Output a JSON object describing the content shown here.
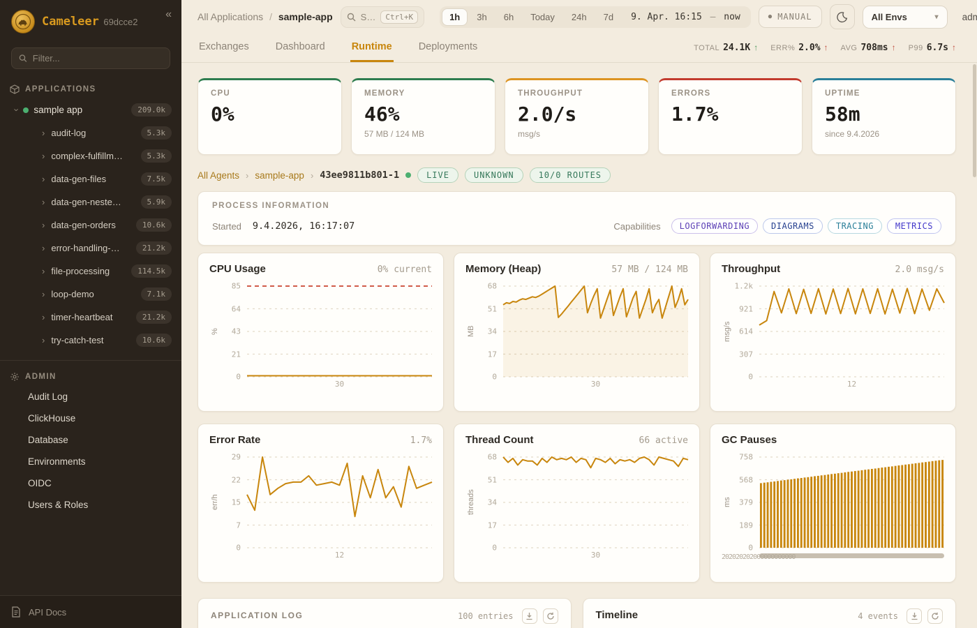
{
  "brand": {
    "name": "Cameleer",
    "build": "69dcce2",
    "collapse_icon": "«",
    "gold": "#d99a1f"
  },
  "sidebar": {
    "filter_placeholder": "Filter...",
    "applications_header": "APPLICATIONS",
    "app": {
      "name": "sample app",
      "count": "209.0k"
    },
    "routes": [
      {
        "label": "audit-log",
        "count": "5.3k"
      },
      {
        "label": "complex-fulfillm…",
        "count": "5.3k"
      },
      {
        "label": "data-gen-files",
        "count": "7.5k"
      },
      {
        "label": "data-gen-neste…",
        "count": "5.9k"
      },
      {
        "label": "data-gen-orders",
        "count": "10.6k"
      },
      {
        "label": "error-handling-…",
        "count": "21.2k"
      },
      {
        "label": "file-processing",
        "count": "114.5k"
      },
      {
        "label": "loop-demo",
        "count": "7.1k"
      },
      {
        "label": "timer-heartbeat",
        "count": "21.2k"
      },
      {
        "label": "try-catch-test",
        "count": "10.6k"
      }
    ],
    "admin_header": "ADMIN",
    "admin_items": [
      "Audit Log",
      "ClickHouse",
      "Database",
      "Environments",
      "OIDC",
      "Users & Roles"
    ],
    "api_docs": "API Docs"
  },
  "topbar": {
    "breadcrumb": {
      "root": "All Applications",
      "separator": "/",
      "current": "sample-app"
    },
    "search": {
      "placeholder": "S…",
      "shortcut": "Ctrl+K"
    },
    "time_ranges": [
      "1h",
      "3h",
      "6h",
      "Today",
      "24h",
      "7d"
    ],
    "active_range": "1h",
    "date_range": {
      "start": "9. Apr. 16:15",
      "separator": "—",
      "end": "now"
    },
    "manual_button": "MANUAL",
    "env_select": "All Envs",
    "user": "admin"
  },
  "tabs": {
    "items": [
      "Exchanges",
      "Dashboard",
      "Runtime",
      "Deployments"
    ],
    "active": "Runtime"
  },
  "stats": [
    {
      "label": "TOTAL",
      "value": "24.1K",
      "arrow": "↑",
      "trend": "up-good"
    },
    {
      "label": "ERR%",
      "value": "2.0%",
      "arrow": "↑",
      "trend": "up-bad"
    },
    {
      "label": "AVG",
      "value": "708ms",
      "arrow": "↑",
      "trend": "up-bad"
    },
    {
      "label": "P99",
      "value": "6.7s",
      "arrow": "↑",
      "trend": "up-bad"
    }
  ],
  "metric_cards": [
    {
      "label": "CPU",
      "value": "0%",
      "sub": "",
      "accent": "#2e7d4f"
    },
    {
      "label": "MEMORY",
      "value": "46%",
      "sub": "57 MB / 124 MB",
      "accent": "#2e7d4f"
    },
    {
      "label": "THROUGHPUT",
      "value": "2.0/s",
      "sub": "msg/s",
      "accent": "#dd9422"
    },
    {
      "label": "ERRORS",
      "value": "1.7%",
      "sub": "",
      "accent": "#c23b2e"
    },
    {
      "label": "UPTIME",
      "value": "58m",
      "sub": "since 9.4.2026",
      "accent": "#2a7f99"
    }
  ],
  "agent_bar": {
    "links": [
      "All Agents",
      "sample-app"
    ],
    "separator": "›",
    "agent_id": "43ee9811b801-1",
    "status_dot_color": "#4caf70",
    "pills": [
      "LIVE",
      "UNKNOWN",
      "10/0 ROUTES"
    ]
  },
  "process_info": {
    "title": "PROCESS INFORMATION",
    "started_label": "Started",
    "started_value": "9.4.2026, 16:17:07",
    "capabilities_label": "Capabilities",
    "capabilities": [
      {
        "label": "LOGFORWARDING",
        "color": "#5b3fb5",
        "border": "#cbc0ea"
      },
      {
        "label": "DIAGRAMS",
        "color": "#27418f",
        "border": "#bcc8ea"
      },
      {
        "label": "TRACING",
        "color": "#2a7f99",
        "border": "#b7d8e0"
      },
      {
        "label": "METRICS",
        "color": "#4338ca",
        "border": "#c0c4ef"
      }
    ]
  },
  "chart_data": [
    {
      "type": "line",
      "title": "CPU Usage",
      "value_label": "0% current",
      "ylabel": "%",
      "yticks": [
        "85",
        "64",
        "43",
        "21",
        "0"
      ],
      "ymax": 85,
      "threshold": 85,
      "x_tick": "30",
      "values": [
        0,
        0,
        0,
        0,
        0,
        0,
        0,
        0,
        0,
        0,
        0,
        0,
        0,
        0,
        0,
        0,
        0,
        0,
        0,
        0,
        0,
        0,
        0,
        0,
        0,
        0,
        0,
        0,
        0,
        0
      ]
    },
    {
      "type": "area",
      "title": "Memory (Heap)",
      "value_label": "57 MB / 124 MB",
      "ylabel": "MB",
      "yticks": [
        "68",
        "51",
        "34",
        "17",
        "0"
      ],
      "ymax": 68,
      "x_tick": "30",
      "values": [
        54,
        55.5,
        55,
        56.5,
        56,
        57.5,
        58.5,
        58,
        59,
        60,
        59.5,
        60.5,
        62,
        63.5,
        65,
        66.5,
        68,
        44.5,
        47,
        50,
        53,
        56,
        59,
        62,
        65,
        68,
        48,
        55,
        61,
        66,
        44,
        51,
        58,
        65,
        46,
        53,
        60,
        66,
        45,
        52,
        59,
        64,
        44,
        51,
        58,
        66,
        48,
        54,
        58,
        44,
        52,
        60,
        68,
        52,
        58,
        66,
        54,
        58
      ]
    },
    {
      "type": "line",
      "title": "Throughput",
      "value_label": "2.0 msg/s",
      "ylabel": "msg/s",
      "yticks": [
        "1.2k",
        "921",
        "614",
        "307",
        "0"
      ],
      "ymax": 1228,
      "x_tick": "12",
      "values": [
        700,
        760,
        1155,
        865,
        1190,
        855,
        1185,
        858,
        1192,
        850,
        1188,
        856,
        1195,
        852,
        1190,
        858,
        1192,
        850,
        1186,
        862,
        1195,
        855,
        1188,
        900,
        1190,
        1000
      ]
    },
    {
      "type": "line",
      "title": "Error Rate",
      "value_label": "1.7%",
      "ylabel": "err/h",
      "yticks": [
        "29",
        "22",
        "15",
        "7",
        "0"
      ],
      "ymax": 29,
      "x_tick": "12",
      "values": [
        17,
        12,
        29,
        17,
        19,
        20.5,
        21,
        21,
        23,
        20,
        20.5,
        21,
        20,
        27,
        10,
        23,
        16,
        25,
        16,
        19.5,
        13,
        26,
        19,
        20,
        21
      ]
    },
    {
      "type": "line",
      "title": "Thread Count",
      "value_label": "66 active",
      "ylabel": "threads",
      "yticks": [
        "68",
        "51",
        "34",
        "17",
        "0"
      ],
      "ymax": 68,
      "x_tick": "30",
      "values": [
        68,
        64,
        67,
        62,
        66,
        65,
        65,
        62,
        67,
        64,
        68,
        66,
        67,
        66,
        68,
        64,
        67,
        66,
        60,
        67,
        66,
        64,
        67,
        63,
        66,
        65,
        66,
        64,
        67,
        68,
        66,
        62,
        68,
        67,
        66,
        65,
        61,
        67,
        66
      ]
    },
    {
      "type": "bar",
      "title": "GC Pauses",
      "value_label": "",
      "ylabel": "ms",
      "yticks": [
        "758",
        "568",
        "379",
        "189",
        "0"
      ],
      "ymax": 758,
      "x_axis_overlap": "202020202000000000000",
      "has_scroll_track": true,
      "values": [
        540,
        544,
        547,
        551,
        554,
        558,
        562,
        565,
        569,
        572,
        576,
        580,
        583,
        587,
        590,
        594,
        598,
        601,
        605,
        608,
        612,
        616,
        619,
        623,
        626,
        630,
        634,
        637,
        641,
        644,
        648,
        652,
        655,
        659,
        662,
        666,
        670,
        673,
        677,
        680,
        684,
        688,
        691,
        695,
        698,
        702,
        706,
        709,
        713,
        716,
        720,
        724,
        727,
        731,
        734
      ]
    }
  ],
  "bottom_cards": {
    "log": {
      "title": "APPLICATION LOG",
      "count": "100 entries"
    },
    "timeline": {
      "title": "Timeline",
      "count": "4 events"
    }
  },
  "colors": {
    "accent_orange": "#c8860d",
    "threshold_red": "#d05c49"
  }
}
